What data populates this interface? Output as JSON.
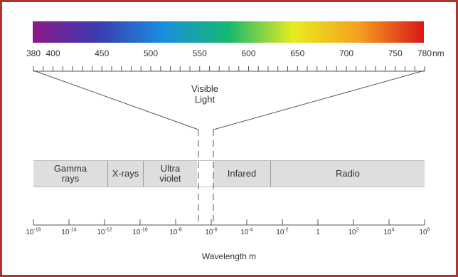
{
  "spectrum": {
    "gradient_stops": [
      "#8b1a8a",
      "#3a3bb0",
      "#1a8ee0",
      "#15b870",
      "#e8ec20",
      "#f5a020",
      "#d81818"
    ],
    "tick_labels": [
      "380",
      "400",
      "450",
      "500",
      "550",
      "600",
      "650",
      "700",
      "750",
      "780"
    ],
    "unit": "nm"
  },
  "visible_label": [
    "Visible",
    "Light"
  ],
  "bands": [
    {
      "name": "gamma",
      "lines": [
        "Gamma",
        "rays"
      ]
    },
    {
      "name": "xrays",
      "lines": [
        "X-rays"
      ]
    },
    {
      "name": "ultraviolet",
      "lines": [
        "Ultra",
        "violet"
      ]
    },
    {
      "name": "infrared",
      "lines": [
        "Infared"
      ]
    },
    {
      "name": "radio",
      "lines": [
        "Radio"
      ]
    }
  ],
  "wavelength_axis": {
    "labels": [
      {
        "base": "10",
        "exp": "-16"
      },
      {
        "base": "10",
        "exp": "-14"
      },
      {
        "base": "10",
        "exp": "-12"
      },
      {
        "base": "10",
        "exp": "-10"
      },
      {
        "base": "10",
        "exp": "-8"
      },
      {
        "base": "10",
        "exp": "-6"
      },
      {
        "base": "10",
        "exp": "-4"
      },
      {
        "base": "10",
        "exp": "-2"
      },
      {
        "base": "1",
        "exp": ""
      },
      {
        "base": "10",
        "exp": "2"
      },
      {
        "base": "10",
        "exp": "4"
      },
      {
        "base": "10",
        "exp": "6"
      }
    ],
    "title": "Wavelength m"
  },
  "colors": {
    "frame": "#b0342d",
    "band_fill": "#dedede",
    "line": "#555555"
  }
}
